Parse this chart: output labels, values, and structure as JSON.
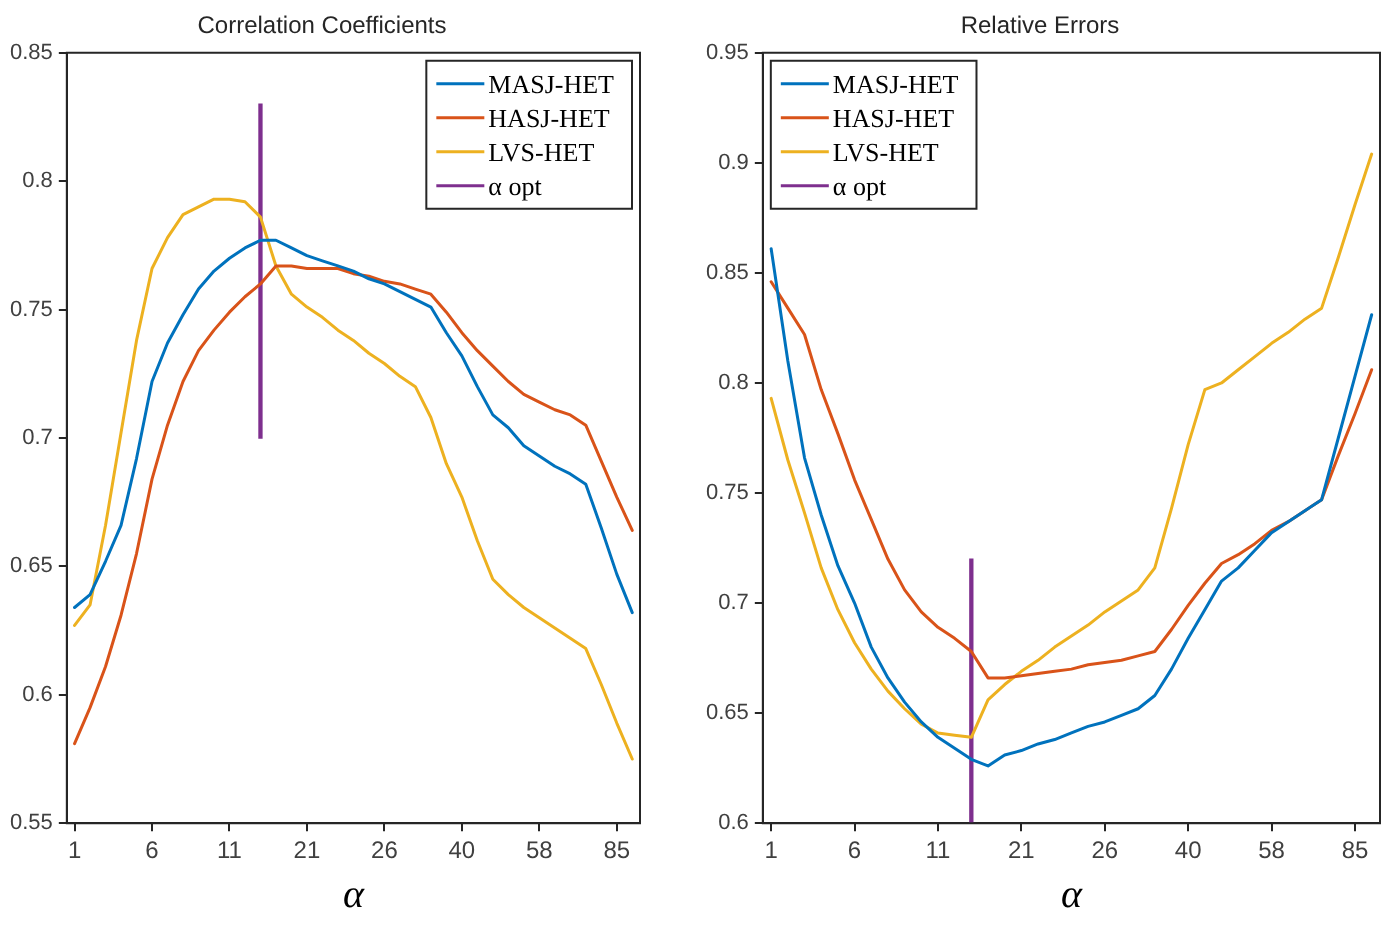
{
  "chart_data": [
    {
      "type": "line",
      "title": "Correlation Coefficients",
      "xlabel": "α",
      "categories": [
        "1",
        null,
        null,
        null,
        null,
        "6",
        null,
        null,
        null,
        null,
        "11",
        null,
        null,
        null,
        null,
        "21",
        null,
        null,
        null,
        null,
        "26",
        null,
        null,
        null,
        null,
        "40",
        null,
        null,
        null,
        null,
        "58",
        null,
        null,
        null,
        null,
        "85",
        null
      ],
      "ylim": [
        0.55,
        0.85
      ],
      "yticks": [
        0.55,
        0.6,
        0.65,
        0.7,
        0.75,
        0.8,
        0.85
      ],
      "grid": false,
      "legend": "top right",
      "marker": "none",
      "series": [
        {
          "name": "MASJ-HET",
          "color": "#0072bd",
          "values": [
            0.634,
            0.639,
            0.652,
            0.666,
            0.692,
            0.722,
            0.737,
            0.748,
            0.758,
            0.765,
            0.77,
            0.774,
            0.777,
            0.777,
            0.774,
            0.771,
            0.769,
            0.767,
            0.765,
            0.762,
            0.76,
            0.757,
            0.754,
            0.751,
            0.741,
            0.732,
            0.72,
            0.709,
            0.704,
            0.697,
            0.693,
            0.689,
            0.686,
            0.682,
            0.665,
            0.647,
            0.632
          ]
        },
        {
          "name": "HASJ-HET",
          "color": "#d95319",
          "values": [
            0.581,
            0.595,
            0.611,
            0.631,
            0.655,
            0.684,
            0.705,
            0.722,
            0.734,
            0.742,
            0.749,
            0.755,
            0.76,
            0.767,
            0.767,
            0.766,
            0.766,
            0.766,
            0.764,
            0.763,
            0.761,
            0.76,
            0.758,
            0.756,
            0.749,
            0.741,
            0.734,
            0.728,
            0.722,
            0.717,
            0.714,
            0.711,
            0.709,
            0.705,
            0.691,
            0.677,
            0.664
          ]
        },
        {
          "name": "LVS-HET",
          "color": "#edb120",
          "values": [
            0.627,
            0.635,
            0.666,
            0.702,
            0.738,
            0.766,
            0.778,
            0.787,
            0.79,
            0.793,
            0.793,
            0.792,
            0.786,
            0.767,
            0.756,
            0.751,
            0.747,
            0.742,
            0.738,
            0.733,
            0.729,
            0.724,
            0.72,
            0.708,
            0.69,
            0.677,
            0.66,
            0.645,
            0.639,
            0.634,
            0.63,
            0.626,
            0.622,
            0.618,
            0.604,
            0.589,
            0.575
          ]
        },
        {
          "name": "α opt",
          "type": "bar",
          "color": "#7e2f8e",
          "values": [
            null,
            null,
            null,
            null,
            null,
            null,
            null,
            null,
            null,
            null,
            null,
            null,
            0.13,
            null,
            null,
            null,
            null,
            null,
            null,
            null,
            null,
            null,
            null,
            null,
            null,
            null,
            null,
            null,
            null,
            null,
            null,
            null,
            null,
            null,
            null,
            null,
            null
          ],
          "base": [
            null,
            null,
            null,
            null,
            null,
            null,
            null,
            null,
            null,
            null,
            null,
            null,
            0.7,
            null,
            null,
            null,
            null,
            null,
            null,
            null,
            null,
            null,
            null,
            null,
            null,
            null,
            null,
            null,
            null,
            null,
            null,
            null,
            null,
            null,
            null,
            null,
            null
          ]
        }
      ]
    },
    {
      "type": "line",
      "title": "Relative Errors",
      "xlabel": "α",
      "categories": [
        "1",
        null,
        null,
        null,
        null,
        "6",
        null,
        null,
        null,
        null,
        "11",
        null,
        null,
        null,
        null,
        "21",
        null,
        null,
        null,
        null,
        "26",
        null,
        null,
        null,
        null,
        "40",
        null,
        null,
        null,
        null,
        "58",
        null,
        null,
        null,
        null,
        "85",
        null
      ],
      "ylim": [
        0.6,
        0.95
      ],
      "yticks": [
        0.6,
        0.65,
        0.7,
        0.75,
        0.8,
        0.85,
        0.9,
        0.95
      ],
      "grid": false,
      "legend": "top left",
      "marker": "none",
      "series": [
        {
          "name": "MASJ-HET",
          "color": "#0072bd",
          "values": [
            0.861,
            0.81,
            0.766,
            0.74,
            0.717,
            0.7,
            0.68,
            0.666,
            0.655,
            0.646,
            0.639,
            0.634,
            0.629,
            0.626,
            0.631,
            0.633,
            0.636,
            0.638,
            0.641,
            0.644,
            0.646,
            0.649,
            0.652,
            0.658,
            0.67,
            0.684,
            0.697,
            0.71,
            0.716,
            0.724,
            0.732,
            0.737,
            0.742,
            0.747,
            0.775,
            0.803,
            0.831
          ]
        },
        {
          "name": "HASJ-HET",
          "color": "#d95319",
          "values": [
            0.846,
            0.834,
            0.822,
            0.797,
            0.777,
            0.756,
            0.738,
            0.72,
            0.706,
            0.696,
            0.689,
            0.684,
            0.678,
            0.666,
            0.666,
            0.667,
            0.668,
            0.669,
            0.67,
            0.672,
            0.673,
            0.674,
            0.676,
            0.678,
            0.688,
            0.699,
            0.709,
            0.718,
            0.722,
            0.727,
            0.733,
            0.737,
            0.742,
            0.747,
            0.767,
            0.786,
            0.806
          ]
        },
        {
          "name": "LVS-HET",
          "color": "#edb120",
          "values": [
            0.793,
            0.765,
            0.741,
            0.716,
            0.697,
            0.682,
            0.67,
            0.66,
            0.652,
            0.645,
            0.641,
            0.64,
            0.639,
            0.656,
            0.663,
            0.669,
            0.674,
            0.68,
            0.685,
            0.69,
            0.696,
            0.701,
            0.706,
            0.716,
            0.743,
            0.772,
            0.797,
            0.8,
            0.806,
            0.812,
            0.818,
            0.823,
            0.829,
            0.834,
            0.857,
            0.881,
            0.904
          ]
        },
        {
          "name": "α opt",
          "type": "bar",
          "color": "#7e2f8e",
          "values": [
            null,
            null,
            null,
            null,
            null,
            null,
            null,
            null,
            null,
            null,
            null,
            null,
            0.12,
            null,
            null,
            null,
            null,
            null,
            null,
            null,
            null,
            null,
            null,
            null,
            null,
            null,
            null,
            null,
            null,
            null,
            null,
            null,
            null,
            null,
            null,
            null,
            null
          ],
          "base": [
            null,
            null,
            null,
            null,
            null,
            null,
            null,
            null,
            null,
            null,
            null,
            null,
            0.6,
            null,
            null,
            null,
            null,
            null,
            null,
            null,
            null,
            null,
            null,
            null,
            null,
            null,
            null,
            null,
            null,
            null,
            null,
            null,
            null,
            null,
            null,
            null,
            null
          ]
        }
      ]
    }
  ]
}
